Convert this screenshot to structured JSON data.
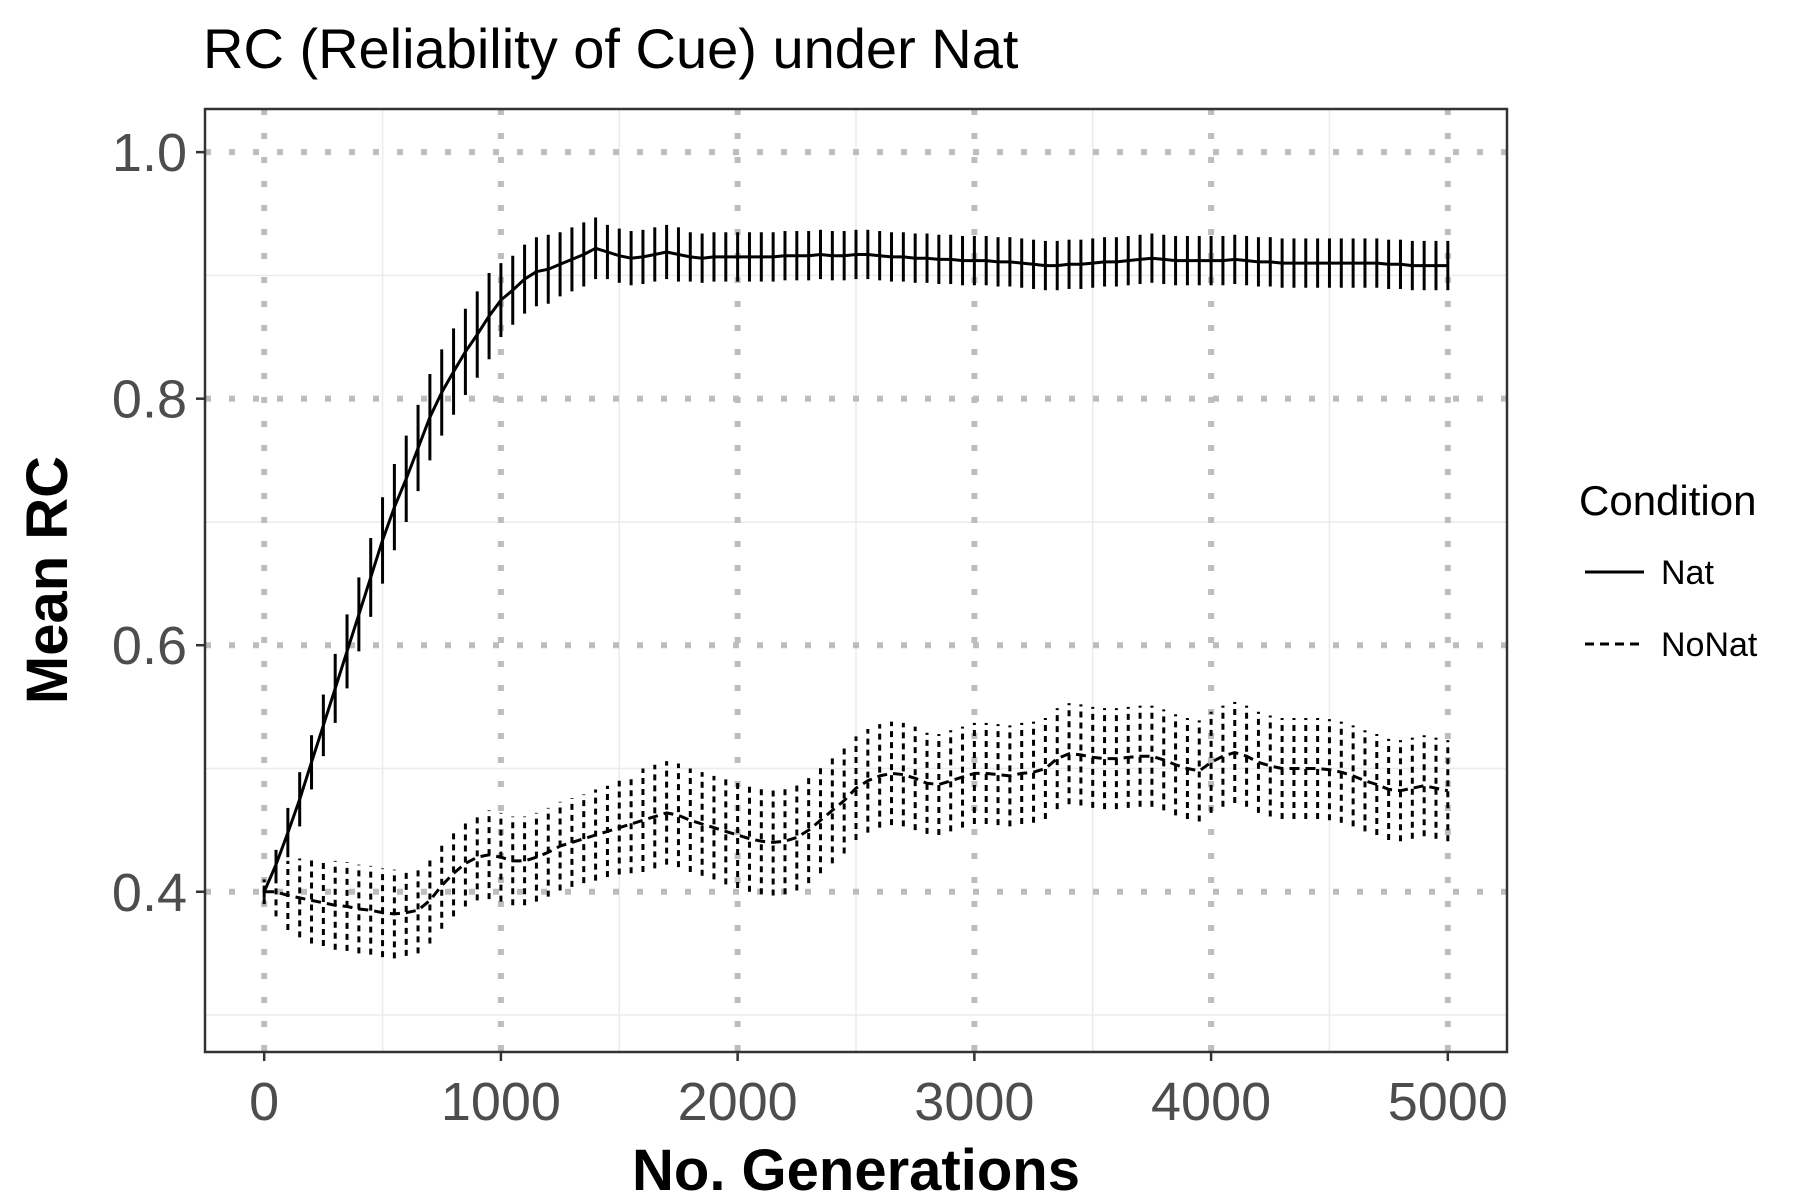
{
  "chart_data": {
    "type": "line",
    "title": "RC (Reliability of Cue) under Nat",
    "xlabel": "No. Generations",
    "ylabel": "Mean RC",
    "xlim": [
      -250,
      5250
    ],
    "ylim": [
      0.27,
      1.035
    ],
    "x_ticks": [
      0,
      1000,
      2000,
      3000,
      4000,
      5000
    ],
    "x_tick_labels": [
      "0",
      "1000",
      "2000",
      "3000",
      "4000",
      "5000"
    ],
    "y_ticks": [
      0.4,
      0.6,
      0.8,
      1.0
    ],
    "y_tick_labels": [
      "0.4",
      "0.6",
      "0.8",
      "1.0"
    ],
    "grid": true,
    "error_bars": true,
    "legend": {
      "title": "Condition",
      "position": "right",
      "entries": [
        "Nat",
        "NoNat"
      ]
    },
    "series": [
      {
        "name": "Nat",
        "line_style": "solid",
        "color": "#000000",
        "points": [
          [
            0,
            0.4,
            0.005
          ],
          [
            50,
            0.422,
            0.012
          ],
          [
            100,
            0.448,
            0.02
          ],
          [
            150,
            0.475,
            0.022
          ],
          [
            200,
            0.505,
            0.022
          ],
          [
            250,
            0.535,
            0.025
          ],
          [
            300,
            0.565,
            0.028
          ],
          [
            350,
            0.595,
            0.03
          ],
          [
            400,
            0.625,
            0.03
          ],
          [
            450,
            0.655,
            0.032
          ],
          [
            500,
            0.685,
            0.035
          ],
          [
            550,
            0.712,
            0.035
          ],
          [
            600,
            0.735,
            0.035
          ],
          [
            650,
            0.76,
            0.035
          ],
          [
            700,
            0.785,
            0.035
          ],
          [
            750,
            0.805,
            0.035
          ],
          [
            800,
            0.822,
            0.035
          ],
          [
            850,
            0.838,
            0.035
          ],
          [
            900,
            0.852,
            0.035
          ],
          [
            950,
            0.867,
            0.035
          ],
          [
            1000,
            0.88,
            0.03
          ],
          [
            1050,
            0.888,
            0.028
          ],
          [
            1100,
            0.897,
            0.028
          ],
          [
            1150,
            0.903,
            0.028
          ],
          [
            1200,
            0.905,
            0.028
          ],
          [
            1250,
            0.909,
            0.026
          ],
          [
            1300,
            0.913,
            0.026
          ],
          [
            1350,
            0.917,
            0.026
          ],
          [
            1400,
            0.922,
            0.025
          ],
          [
            1450,
            0.919,
            0.022
          ],
          [
            1500,
            0.916,
            0.022
          ],
          [
            1550,
            0.914,
            0.022
          ],
          [
            1600,
            0.915,
            0.022
          ],
          [
            1650,
            0.917,
            0.022
          ],
          [
            1700,
            0.919,
            0.022
          ],
          [
            1750,
            0.917,
            0.022
          ],
          [
            1800,
            0.915,
            0.02
          ],
          [
            1850,
            0.914,
            0.02
          ],
          [
            1900,
            0.915,
            0.02
          ],
          [
            1950,
            0.915,
            0.02
          ],
          [
            2000,
            0.915,
            0.02
          ],
          [
            2050,
            0.915,
            0.02
          ],
          [
            2100,
            0.915,
            0.02
          ],
          [
            2150,
            0.915,
            0.02
          ],
          [
            2200,
            0.916,
            0.02
          ],
          [
            2250,
            0.916,
            0.02
          ],
          [
            2300,
            0.916,
            0.02
          ],
          [
            2350,
            0.917,
            0.02
          ],
          [
            2400,
            0.916,
            0.02
          ],
          [
            2450,
            0.916,
            0.02
          ],
          [
            2500,
            0.917,
            0.02
          ],
          [
            2550,
            0.917,
            0.02
          ],
          [
            2600,
            0.916,
            0.02
          ],
          [
            2650,
            0.915,
            0.02
          ],
          [
            2700,
            0.915,
            0.02
          ],
          [
            2750,
            0.914,
            0.02
          ],
          [
            2800,
            0.914,
            0.02
          ],
          [
            2850,
            0.913,
            0.02
          ],
          [
            2900,
            0.913,
            0.02
          ],
          [
            2950,
            0.912,
            0.02
          ],
          [
            3000,
            0.912,
            0.02
          ],
          [
            3050,
            0.912,
            0.02
          ],
          [
            3100,
            0.911,
            0.02
          ],
          [
            3150,
            0.911,
            0.02
          ],
          [
            3200,
            0.91,
            0.02
          ],
          [
            3250,
            0.909,
            0.02
          ],
          [
            3300,
            0.908,
            0.02
          ],
          [
            3350,
            0.908,
            0.02
          ],
          [
            3400,
            0.909,
            0.02
          ],
          [
            3450,
            0.909,
            0.02
          ],
          [
            3500,
            0.91,
            0.02
          ],
          [
            3550,
            0.911,
            0.02
          ],
          [
            3600,
            0.911,
            0.02
          ],
          [
            3650,
            0.912,
            0.02
          ],
          [
            3700,
            0.913,
            0.02
          ],
          [
            3750,
            0.914,
            0.02
          ],
          [
            3800,
            0.913,
            0.02
          ],
          [
            3850,
            0.912,
            0.02
          ],
          [
            3900,
            0.912,
            0.02
          ],
          [
            3950,
            0.912,
            0.02
          ],
          [
            4000,
            0.912,
            0.02
          ],
          [
            4050,
            0.912,
            0.02
          ],
          [
            4100,
            0.913,
            0.02
          ],
          [
            4150,
            0.912,
            0.02
          ],
          [
            4200,
            0.911,
            0.02
          ],
          [
            4250,
            0.911,
            0.02
          ],
          [
            4300,
            0.91,
            0.02
          ],
          [
            4350,
            0.91,
            0.02
          ],
          [
            4400,
            0.91,
            0.02
          ],
          [
            4450,
            0.91,
            0.02
          ],
          [
            4500,
            0.91,
            0.02
          ],
          [
            4550,
            0.91,
            0.02
          ],
          [
            4600,
            0.91,
            0.02
          ],
          [
            4650,
            0.91,
            0.02
          ],
          [
            4700,
            0.91,
            0.02
          ],
          [
            4750,
            0.909,
            0.02
          ],
          [
            4800,
            0.909,
            0.02
          ],
          [
            4850,
            0.908,
            0.02
          ],
          [
            4900,
            0.908,
            0.02
          ],
          [
            4950,
            0.908,
            0.02
          ],
          [
            5000,
            0.908,
            0.02
          ]
        ]
      },
      {
        "name": "NoNat",
        "line_style": "dashed",
        "color": "#000000",
        "points": [
          [
            0,
            0.4,
            0.01
          ],
          [
            50,
            0.4,
            0.02
          ],
          [
            100,
            0.397,
            0.028
          ],
          [
            150,
            0.395,
            0.032
          ],
          [
            200,
            0.393,
            0.035
          ],
          [
            250,
            0.391,
            0.035
          ],
          [
            300,
            0.389,
            0.036
          ],
          [
            350,
            0.388,
            0.036
          ],
          [
            400,
            0.386,
            0.036
          ],
          [
            450,
            0.385,
            0.036
          ],
          [
            500,
            0.383,
            0.036
          ],
          [
            550,
            0.382,
            0.036
          ],
          [
            600,
            0.383,
            0.035
          ],
          [
            650,
            0.385,
            0.035
          ],
          [
            700,
            0.393,
            0.035
          ],
          [
            750,
            0.405,
            0.035
          ],
          [
            800,
            0.415,
            0.035
          ],
          [
            850,
            0.423,
            0.035
          ],
          [
            900,
            0.428,
            0.035
          ],
          [
            950,
            0.43,
            0.036
          ],
          [
            1000,
            0.428,
            0.036
          ],
          [
            1050,
            0.425,
            0.036
          ],
          [
            1100,
            0.425,
            0.036
          ],
          [
            1150,
            0.428,
            0.036
          ],
          [
            1200,
            0.432,
            0.036
          ],
          [
            1250,
            0.437,
            0.036
          ],
          [
            1300,
            0.44,
            0.036
          ],
          [
            1350,
            0.443,
            0.036
          ],
          [
            1400,
            0.446,
            0.037
          ],
          [
            1450,
            0.449,
            0.037
          ],
          [
            1500,
            0.452,
            0.038
          ],
          [
            1550,
            0.455,
            0.04
          ],
          [
            1600,
            0.458,
            0.042
          ],
          [
            1650,
            0.461,
            0.042
          ],
          [
            1700,
            0.464,
            0.042
          ],
          [
            1750,
            0.462,
            0.042
          ],
          [
            1800,
            0.458,
            0.042
          ],
          [
            1850,
            0.455,
            0.042
          ],
          [
            1900,
            0.452,
            0.042
          ],
          [
            1950,
            0.449,
            0.043
          ],
          [
            2000,
            0.446,
            0.043
          ],
          [
            2050,
            0.443,
            0.043
          ],
          [
            2100,
            0.441,
            0.043
          ],
          [
            2150,
            0.44,
            0.043
          ],
          [
            2200,
            0.441,
            0.043
          ],
          [
            2250,
            0.444,
            0.043
          ],
          [
            2300,
            0.45,
            0.043
          ],
          [
            2350,
            0.458,
            0.043
          ],
          [
            2400,
            0.466,
            0.043
          ],
          [
            2450,
            0.474,
            0.043
          ],
          [
            2500,
            0.484,
            0.042
          ],
          [
            2550,
            0.49,
            0.042
          ],
          [
            2600,
            0.494,
            0.042
          ],
          [
            2650,
            0.496,
            0.042
          ],
          [
            2700,
            0.495,
            0.042
          ],
          [
            2750,
            0.492,
            0.042
          ],
          [
            2800,
            0.488,
            0.041
          ],
          [
            2850,
            0.487,
            0.041
          ],
          [
            2900,
            0.49,
            0.041
          ],
          [
            2950,
            0.493,
            0.041
          ],
          [
            3000,
            0.496,
            0.041
          ],
          [
            3050,
            0.496,
            0.041
          ],
          [
            3100,
            0.495,
            0.041
          ],
          [
            3150,
            0.494,
            0.041
          ],
          [
            3200,
            0.496,
            0.041
          ],
          [
            3250,
            0.497,
            0.041
          ],
          [
            3300,
            0.5,
            0.041
          ],
          [
            3350,
            0.508,
            0.041
          ],
          [
            3400,
            0.512,
            0.041
          ],
          [
            3450,
            0.511,
            0.041
          ],
          [
            3500,
            0.509,
            0.041
          ],
          [
            3550,
            0.508,
            0.041
          ],
          [
            3600,
            0.508,
            0.041
          ],
          [
            3650,
            0.509,
            0.041
          ],
          [
            3700,
            0.51,
            0.041
          ],
          [
            3750,
            0.51,
            0.041
          ],
          [
            3800,
            0.507,
            0.041
          ],
          [
            3850,
            0.503,
            0.041
          ],
          [
            3900,
            0.5,
            0.041
          ],
          [
            3950,
            0.498,
            0.041
          ],
          [
            4000,
            0.505,
            0.041
          ],
          [
            4050,
            0.51,
            0.041
          ],
          [
            4100,
            0.513,
            0.041
          ],
          [
            4150,
            0.51,
            0.041
          ],
          [
            4200,
            0.505,
            0.041
          ],
          [
            4250,
            0.502,
            0.041
          ],
          [
            4300,
            0.5,
            0.041
          ],
          [
            4350,
            0.5,
            0.041
          ],
          [
            4400,
            0.5,
            0.041
          ],
          [
            4450,
            0.5,
            0.041
          ],
          [
            4500,
            0.499,
            0.041
          ],
          [
            4550,
            0.497,
            0.041
          ],
          [
            4600,
            0.494,
            0.041
          ],
          [
            4650,
            0.49,
            0.041
          ],
          [
            4700,
            0.487,
            0.041
          ],
          [
            4750,
            0.483,
            0.041
          ],
          [
            4800,
            0.482,
            0.041
          ],
          [
            4850,
            0.484,
            0.041
          ],
          [
            4900,
            0.486,
            0.041
          ],
          [
            4950,
            0.484,
            0.041
          ],
          [
            5000,
            0.482,
            0.041
          ]
        ]
      }
    ]
  }
}
